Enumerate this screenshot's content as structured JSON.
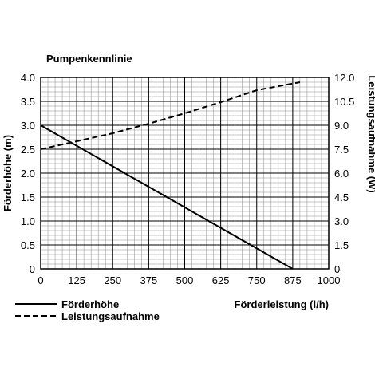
{
  "chart_data": {
    "type": "line",
    "title": "Pumpenkennlinie",
    "xlabel": "Förderleistung (l/h)",
    "ylabel_left": "Förderhöhe (m)",
    "ylabel_right": "Leistungsaufnahme (W)",
    "xlim": [
      0,
      1000
    ],
    "ylim_left": [
      0,
      4.0
    ],
    "ylim_right": [
      0,
      12.0
    ],
    "x_ticks": [
      "0",
      "125",
      "250",
      "375",
      "500",
      "625",
      "750",
      "875",
      "1000"
    ],
    "y_left_ticks": [
      "0",
      "0.5",
      "1.0",
      "1.5",
      "2.0",
      "2.5",
      "3.0",
      "3.5",
      "4.0"
    ],
    "y_right_ticks": [
      "0",
      "1.5",
      "3.0",
      "4.5",
      "6.0",
      "7.5",
      "9.0",
      "10.5",
      "12.0"
    ],
    "grid": true,
    "legend_position": "bottom-left",
    "series": [
      {
        "name": "Förderhöhe",
        "axis": "left",
        "style": "solid",
        "color": "#000000",
        "x": [
          0,
          875
        ],
        "y": [
          3.0,
          0
        ]
      },
      {
        "name": "Leistungsaufnahme",
        "axis": "right",
        "style": "dashed",
        "color": "#000000",
        "x": [
          0,
          125,
          250,
          375,
          500,
          625,
          750,
          900
        ],
        "y": [
          7.5,
          8.0,
          8.5,
          9.1,
          9.75,
          10.45,
          11.2,
          11.7
        ]
      }
    ]
  }
}
